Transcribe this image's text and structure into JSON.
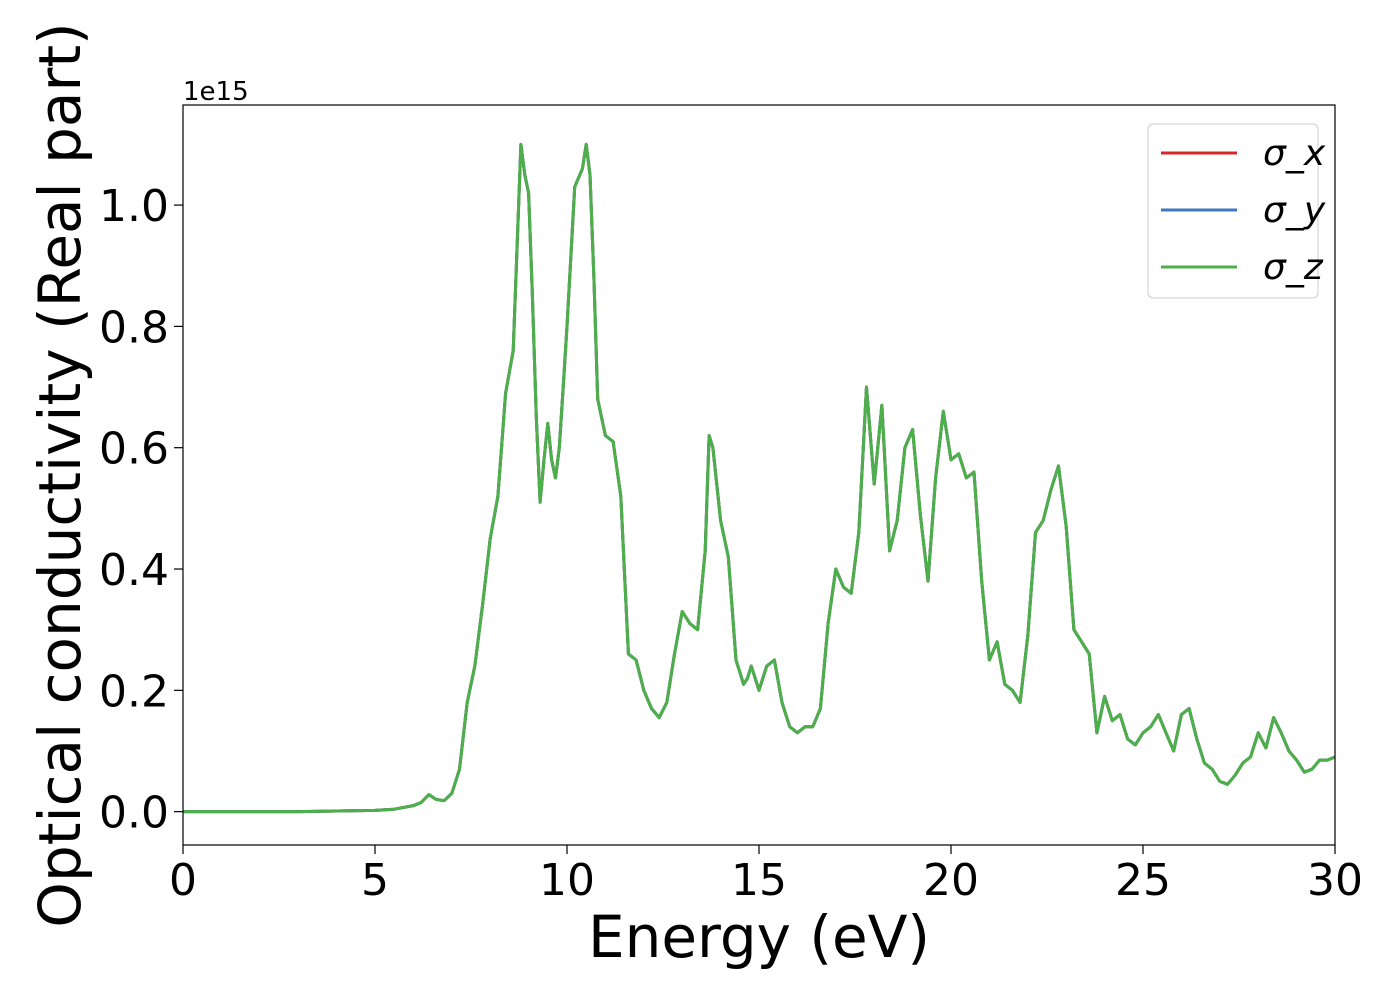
{
  "chart_data": {
    "type": "line",
    "xlabel": "Energy (eV)",
    "ylabel": "Optical conductivity (Real part)",
    "offset_text": "1e15",
    "xlim": [
      0,
      30
    ],
    "ylim": [
      -0.055,
      1.165
    ],
    "xticks": [
      0,
      5,
      10,
      15,
      20,
      25,
      30
    ],
    "xtick_labels": [
      "0",
      "5",
      "10",
      "15",
      "20",
      "25",
      "30"
    ],
    "yticks": [
      0.0,
      0.2,
      0.4,
      0.6,
      0.8,
      1.0
    ],
    "ytick_labels": [
      "0.0",
      "0.2",
      "0.4",
      "0.6",
      "0.8",
      "1.0"
    ],
    "grid": false,
    "legend_position": "top-right",
    "series": [
      {
        "name": "σ_x",
        "color": "#d62728"
      },
      {
        "name": "σ_y",
        "color": "#3b7bbf"
      },
      {
        "name": "σ_z",
        "color": "#4daf4a"
      }
    ],
    "x": [
      0,
      1,
      2,
      3,
      4,
      5,
      5.5,
      6.0,
      6.2,
      6.4,
      6.6,
      6.8,
      7.0,
      7.2,
      7.4,
      7.6,
      7.8,
      8.0,
      8.2,
      8.4,
      8.6,
      8.8,
      8.9,
      9.0,
      9.1,
      9.2,
      9.3,
      9.4,
      9.5,
      9.6,
      9.7,
      9.8,
      9.9,
      10.0,
      10.2,
      10.4,
      10.5,
      10.6,
      10.7,
      10.8,
      11.0,
      11.2,
      11.4,
      11.6,
      11.8,
      12.0,
      12.2,
      12.4,
      12.6,
      12.8,
      13.0,
      13.2,
      13.4,
      13.6,
      13.7,
      13.8,
      14.0,
      14.2,
      14.4,
      14.6,
      14.7,
      14.8,
      15.0,
      15.2,
      15.4,
      15.6,
      15.8,
      16.0,
      16.2,
      16.4,
      16.6,
      16.8,
      17.0,
      17.2,
      17.4,
      17.6,
      17.8,
      18.0,
      18.2,
      18.4,
      18.6,
      18.8,
      19.0,
      19.2,
      19.4,
      19.6,
      19.8,
      20.0,
      20.2,
      20.4,
      20.6,
      20.8,
      21.0,
      21.2,
      21.4,
      21.6,
      21.8,
      22.0,
      22.2,
      22.4,
      22.6,
      22.8,
      23.0,
      23.2,
      23.4,
      23.6,
      23.8,
      24.0,
      24.2,
      24.4,
      24.6,
      24.8,
      25.0,
      25.2,
      25.4,
      25.6,
      25.8,
      26.0,
      26.2,
      26.4,
      26.6,
      26.8,
      27.0,
      27.2,
      27.4,
      27.6,
      27.8,
      28.0,
      28.2,
      28.4,
      28.6,
      28.8,
      29.0,
      29.2,
      29.4,
      29.6,
      29.8,
      30.0
    ],
    "values": [
      0.0,
      0.0,
      0.0,
      0.0,
      0.001,
      0.002,
      0.004,
      0.01,
      0.015,
      0.028,
      0.02,
      0.018,
      0.03,
      0.07,
      0.18,
      0.24,
      0.34,
      0.45,
      0.52,
      0.69,
      0.76,
      1.1,
      1.05,
      1.02,
      0.85,
      0.65,
      0.51,
      0.58,
      0.64,
      0.58,
      0.55,
      0.6,
      0.7,
      0.8,
      1.03,
      1.06,
      1.1,
      1.05,
      0.88,
      0.68,
      0.62,
      0.61,
      0.52,
      0.26,
      0.25,
      0.2,
      0.17,
      0.155,
      0.18,
      0.26,
      0.33,
      0.31,
      0.3,
      0.43,
      0.62,
      0.6,
      0.48,
      0.42,
      0.25,
      0.21,
      0.22,
      0.24,
      0.2,
      0.24,
      0.25,
      0.18,
      0.14,
      0.13,
      0.14,
      0.14,
      0.17,
      0.31,
      0.4,
      0.37,
      0.36,
      0.46,
      0.7,
      0.54,
      0.67,
      0.43,
      0.48,
      0.6,
      0.63,
      0.49,
      0.38,
      0.55,
      0.66,
      0.58,
      0.59,
      0.55,
      0.56,
      0.38,
      0.25,
      0.28,
      0.21,
      0.2,
      0.18,
      0.29,
      0.46,
      0.48,
      0.53,
      0.57,
      0.47,
      0.3,
      0.28,
      0.26,
      0.13,
      0.19,
      0.15,
      0.16,
      0.12,
      0.11,
      0.13,
      0.14,
      0.16,
      0.13,
      0.1,
      0.16,
      0.17,
      0.12,
      0.08,
      0.07,
      0.05,
      0.045,
      0.06,
      0.08,
      0.09,
      0.13,
      0.105,
      0.155,
      0.13,
      0.1,
      0.085,
      0.065,
      0.07,
      0.085,
      0.085,
      0.09
    ]
  }
}
